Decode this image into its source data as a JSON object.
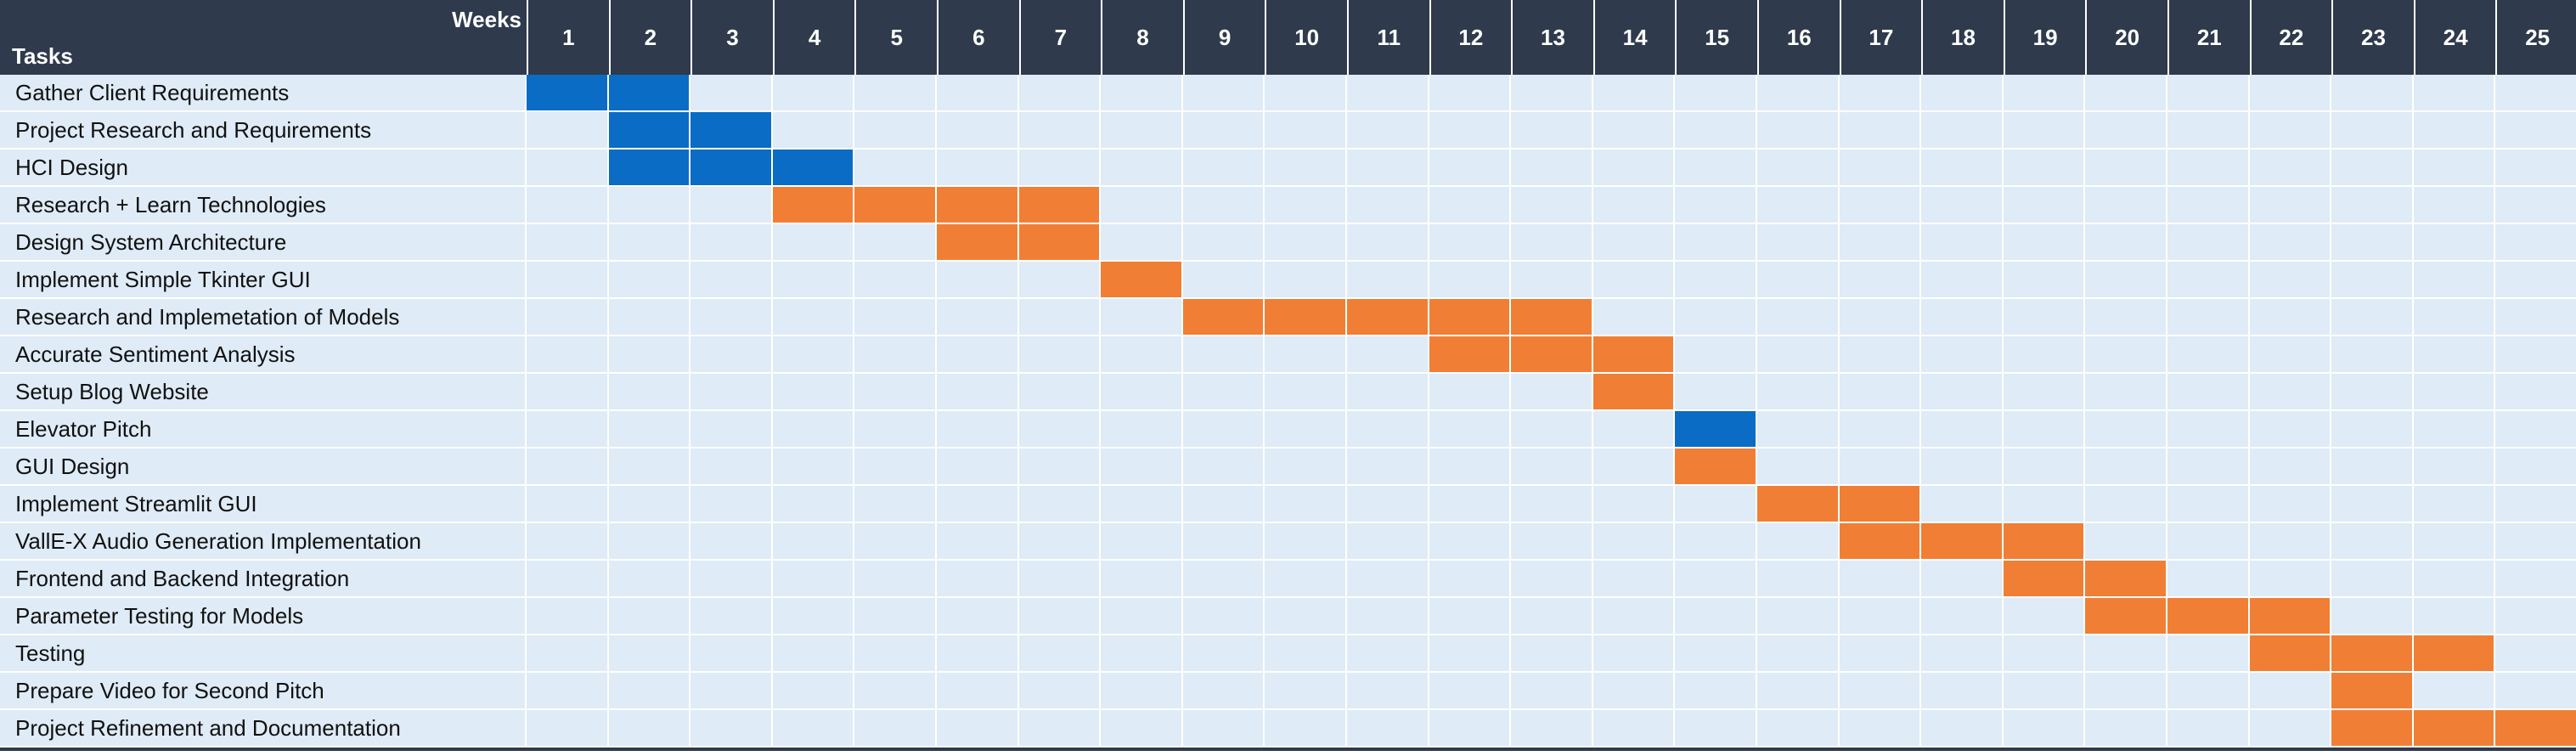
{
  "chart_data": {
    "type": "gantt",
    "header": {
      "weeks_label": "Weeks",
      "tasks_label": "Tasks"
    },
    "weeks": [
      "1",
      "2",
      "3",
      "4",
      "5",
      "6",
      "7",
      "8",
      "9",
      "10",
      "11",
      "12",
      "13",
      "14",
      "15",
      "16",
      "17",
      "18",
      "19",
      "20",
      "21",
      "22",
      "23",
      "24",
      "25"
    ],
    "colors": {
      "header": "#2f3a4c",
      "row": "#dfebf6",
      "blue": "#0a6cc5",
      "orange": "#f07f35"
    },
    "tasks": [
      {
        "name": "Gather Client Requirements",
        "weeks": [
          1,
          2
        ],
        "color": "blue"
      },
      {
        "name": "Project Research and Requirements",
        "weeks": [
          2,
          3
        ],
        "color": "blue"
      },
      {
        "name": "HCI Design",
        "weeks": [
          2,
          3,
          4
        ],
        "color": "blue"
      },
      {
        "name": "Research + Learn Technologies",
        "weeks": [
          4,
          5,
          6,
          7
        ],
        "color": "orange"
      },
      {
        "name": "Design System Architecture",
        "weeks": [
          6,
          7
        ],
        "color": "orange"
      },
      {
        "name": "Implement Simple Tkinter GUI",
        "weeks": [
          8
        ],
        "color": "orange"
      },
      {
        "name": "Research and Implemetation of Models",
        "weeks": [
          9,
          10,
          11,
          12,
          13
        ],
        "color": "orange"
      },
      {
        "name": "Accurate Sentiment Analysis",
        "weeks": [
          12,
          13,
          14
        ],
        "color": "orange"
      },
      {
        "name": "Setup Blog Website",
        "weeks": [
          14
        ],
        "color": "orange"
      },
      {
        "name": "Elevator Pitch",
        "weeks": [
          15
        ],
        "color": "blue"
      },
      {
        "name": "GUI Design",
        "weeks": [
          15
        ],
        "color": "orange"
      },
      {
        "name": "Implement Streamlit GUI",
        "weeks": [
          16,
          17
        ],
        "color": "orange"
      },
      {
        "name": "VallE-X Audio Generation Implementation",
        "weeks": [
          17,
          18,
          19
        ],
        "color": "orange"
      },
      {
        "name": "Frontend and Backend Integration",
        "weeks": [
          19,
          20
        ],
        "color": "orange"
      },
      {
        "name": "Parameter Testing for Models",
        "weeks": [
          20,
          21,
          22
        ],
        "color": "orange"
      },
      {
        "name": "Testing",
        "weeks": [
          22,
          23,
          24
        ],
        "color": "orange"
      },
      {
        "name": "Prepare Video for Second Pitch",
        "weeks": [
          23
        ],
        "color": "orange"
      },
      {
        "name": "Project Refinement and Documentation",
        "weeks": [
          23,
          24,
          25
        ],
        "color": "orange"
      }
    ]
  }
}
